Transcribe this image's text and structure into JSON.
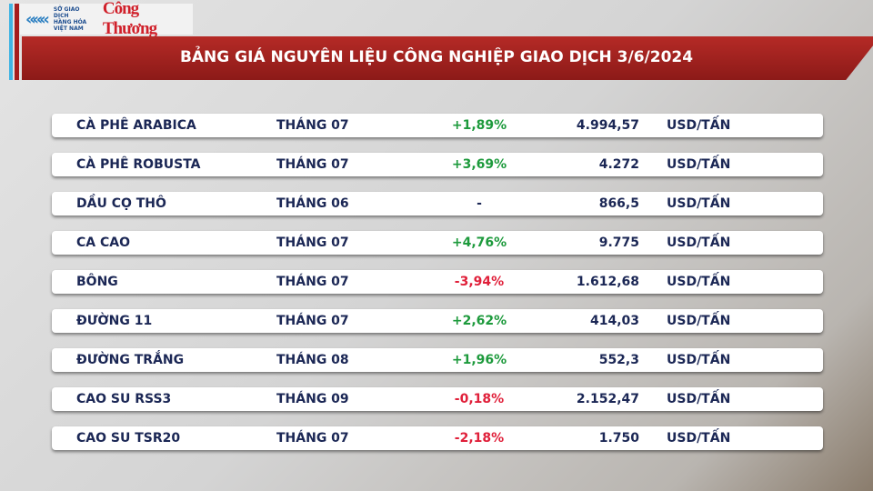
{
  "logo": {
    "exchange_lines": [
      "SỞ GIAO DỊCH",
      "HÀNG HÓA",
      "VIỆT NAM"
    ],
    "brand": "Công Thương"
  },
  "title": "BẢNG GIÁ NGUYÊN LIỆU CÔNG NGHIỆP GIAO DỊCH 3/6/2024",
  "colors": {
    "up": "#1d9a3c",
    "down": "#e0203a",
    "header": "#a51c1c",
    "text": "#1b2755"
  },
  "rows": [
    {
      "name": "CÀ PHÊ ARABICA",
      "month": "THÁNG 07",
      "change": "+1,89%",
      "dir": "up",
      "price": "4.994,57",
      "unit": "USD/TẤN"
    },
    {
      "name": "CÀ PHÊ ROBUSTA",
      "month": "THÁNG 07",
      "change": "+3,69%",
      "dir": "up",
      "price": "4.272",
      "unit": "USD/TẤN"
    },
    {
      "name": "DẦU CỌ THÔ",
      "month": "THÁNG 06",
      "change": "-",
      "dir": "flat",
      "price": "866,5",
      "unit": "USD/TẤN"
    },
    {
      "name": "CA CAO",
      "month": "THÁNG 07",
      "change": "+4,76%",
      "dir": "up",
      "price": "9.775",
      "unit": "USD/TẤN"
    },
    {
      "name": "BÔNG",
      "month": "THÁNG 07",
      "change": "-3,94%",
      "dir": "down",
      "price": "1.612,68",
      "unit": "USD/TẤN"
    },
    {
      "name": "ĐƯỜNG 11",
      "month": "THÁNG 07",
      "change": "+2,62%",
      "dir": "up",
      "price": "414,03",
      "unit": "USD/TẤN"
    },
    {
      "name": "ĐƯỜNG TRẮNG",
      "month": "THÁNG 08",
      "change": "+1,96%",
      "dir": "up",
      "price": "552,3",
      "unit": "USD/TẤN"
    },
    {
      "name": "CAO SU RSS3",
      "month": "THÁNG 09",
      "change": "-0,18%",
      "dir": "down",
      "price": "2.152,47",
      "unit": "USD/TẤN"
    },
    {
      "name": "CAO SU TSR20",
      "month": "THÁNG 07",
      "change": "-2,18%",
      "dir": "down",
      "price": "1.750",
      "unit": "USD/TẤN"
    }
  ]
}
